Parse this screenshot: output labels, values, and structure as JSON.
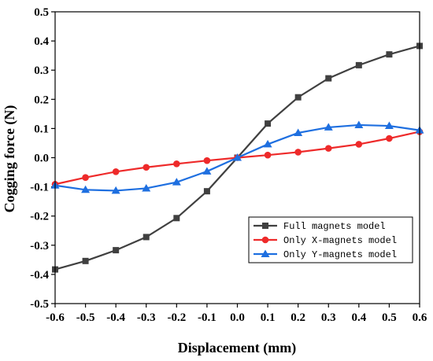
{
  "chart_data": {
    "type": "line",
    "xlabel": "Displacement (mm)",
    "ylabel": "Cogging force (N)",
    "xlim": [
      -0.6,
      0.6
    ],
    "ylim": [
      -0.5,
      0.5
    ],
    "x_ticks": [
      -0.6,
      -0.5,
      -0.4,
      -0.3,
      -0.2,
      -0.1,
      0.0,
      0.1,
      0.2,
      0.3,
      0.4,
      0.5,
      0.6
    ],
    "y_ticks": [
      -0.5,
      -0.4,
      -0.3,
      -0.2,
      -0.1,
      0.0,
      0.1,
      0.2,
      0.3,
      0.4,
      0.5
    ],
    "x_tick_labels": [
      "-0.6",
      "-0.5",
      "-0.4",
      "-0.3",
      "-0.2",
      "-0.1",
      "0.0",
      "0.1",
      "0.2",
      "0.3",
      "0.4",
      "0.5",
      "0.6"
    ],
    "y_tick_labels": [
      "-0.5",
      "-0.4",
      "-0.3",
      "-0.2",
      "-0.1",
      "0.0",
      "0.1",
      "0.2",
      "0.3",
      "0.4",
      "0.5"
    ],
    "grid": false,
    "legend_position": "bottom-right",
    "x": [
      -0.6,
      -0.5,
      -0.4,
      -0.3,
      -0.2,
      -0.1,
      0.0,
      0.1,
      0.2,
      0.3,
      0.4,
      0.5,
      0.6
    ],
    "series": [
      {
        "name": "Full magnets model",
        "color": "#404040",
        "marker": "square",
        "values": [
          -0.383,
          -0.354,
          -0.317,
          -0.272,
          -0.207,
          -0.115,
          0.0,
          0.117,
          0.207,
          0.272,
          0.317,
          0.354,
          0.383
        ]
      },
      {
        "name": "Only X-magnets model",
        "color": "#ee2a2a",
        "marker": "circle",
        "values": [
          -0.091,
          -0.068,
          -0.048,
          -0.033,
          -0.021,
          -0.01,
          0.0,
          0.009,
          0.019,
          0.032,
          0.046,
          0.066,
          0.089
        ]
      },
      {
        "name": "Only Y-magnets model",
        "color": "#1e6fe0",
        "marker": "triangle",
        "values": [
          -0.095,
          -0.11,
          -0.113,
          -0.105,
          -0.084,
          -0.047,
          0.0,
          0.046,
          0.085,
          0.104,
          0.112,
          0.109,
          0.094
        ]
      }
    ]
  }
}
